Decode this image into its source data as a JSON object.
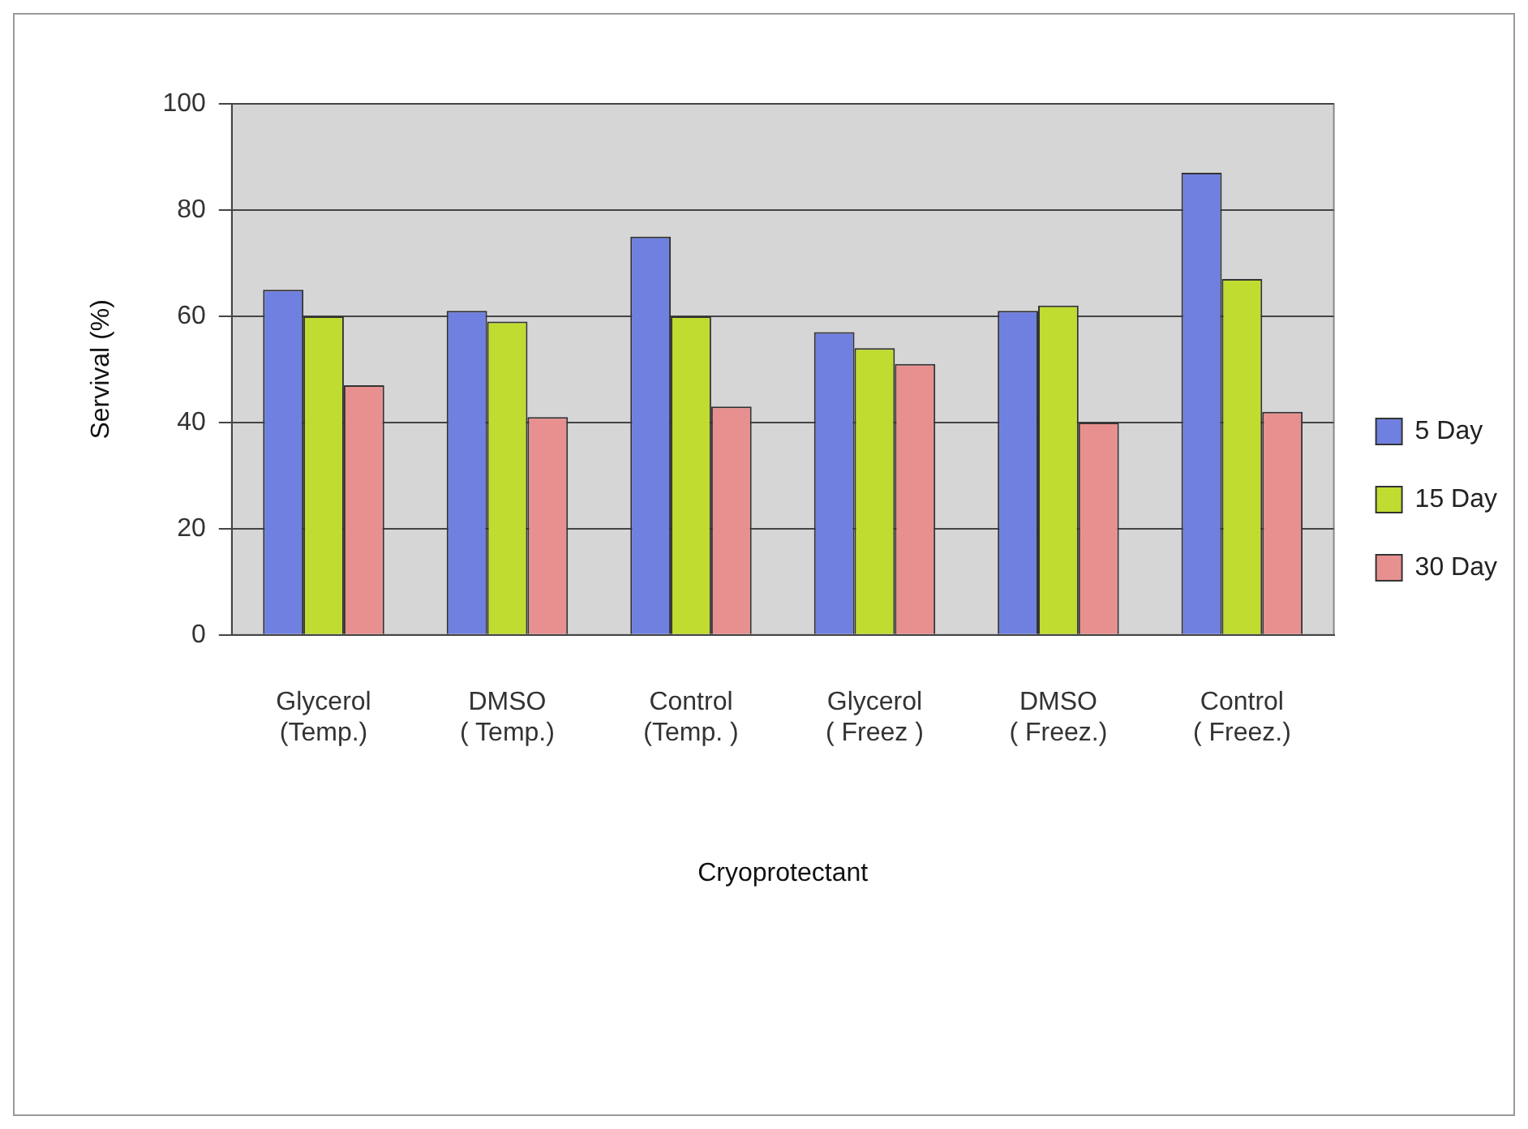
{
  "chart_data": {
    "type": "bar",
    "xlabel": "Cryoprotectant",
    "ylabel": "Servival (%)",
    "categories": [
      "Glycerol (Temp.)",
      "DMSO ( Temp.)",
      "Control (Temp. )",
      "Glycerol ( Freez )",
      "DMSO ( Freez.)",
      "Control ( Freez.)"
    ],
    "series": [
      {
        "name": "5 Day",
        "color": "#7080e0",
        "values": [
          65,
          61,
          75,
          57,
          61,
          87
        ]
      },
      {
        "name": "15 Day",
        "color": "#c0dc30",
        "values": [
          60,
          59,
          60,
          54,
          62,
          67
        ]
      },
      {
        "name": "30 Day",
        "color": "#e89090",
        "values": [
          47,
          41,
          43,
          51,
          40,
          42
        ]
      }
    ],
    "ylim": [
      0,
      100
    ],
    "yticks": [
      0,
      20,
      40,
      60,
      80,
      100
    ],
    "grid": "y",
    "legend": "right"
  }
}
